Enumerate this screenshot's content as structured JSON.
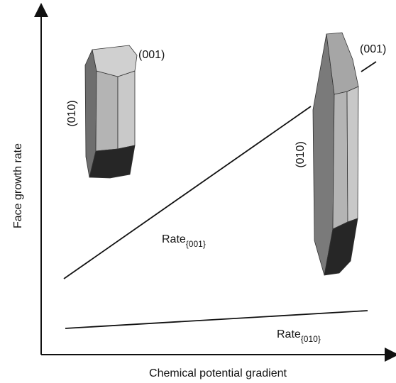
{
  "axes": {
    "x_label": "Chemical potential gradient",
    "y_label": "Face growth rate"
  },
  "lines": {
    "rate_001": {
      "base": "Rate",
      "sub": "{001}"
    },
    "rate_010": {
      "base": "Rate",
      "sub": "{010}"
    }
  },
  "crystal_small": {
    "label_top": "(001)",
    "label_side": "(010)"
  },
  "crystal_tall": {
    "label_top": "(001)",
    "label_side": "(010)"
  },
  "colors": {
    "ink": "#111111",
    "face_light": "#c8c8c8",
    "face_mid": "#9a9a9a",
    "face_dark": "#6b6b6b",
    "face_black": "#222222"
  }
}
